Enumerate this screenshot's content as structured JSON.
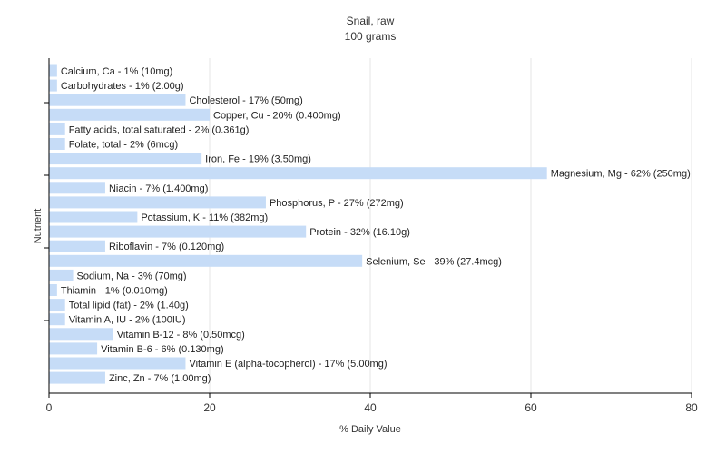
{
  "chart_data": {
    "type": "bar",
    "orientation": "horizontal",
    "title": "Snail, raw",
    "subtitle": "100 grams",
    "xlabel": "% Daily Value",
    "ylabel": "Nutrient",
    "xlim": [
      0,
      80
    ],
    "xticks": [
      0,
      20,
      40,
      60,
      80
    ],
    "grid": true,
    "bar_color": "#c6dcf7",
    "categories": [
      "Calcium, Ca - 1% (10mg)",
      "Carbohydrates - 1% (2.00g)",
      "Cholesterol - 17% (50mg)",
      "Copper, Cu - 20% (0.400mg)",
      "Fatty acids, total saturated - 2% (0.361g)",
      "Folate, total - 2% (6mcg)",
      "Iron, Fe - 19% (3.50mg)",
      "Magnesium, Mg - 62% (250mg)",
      "Niacin - 7% (1.400mg)",
      "Phosphorus, P - 27% (272mg)",
      "Potassium, K - 11% (382mg)",
      "Protein - 32% (16.10g)",
      "Riboflavin - 7% (0.120mg)",
      "Selenium, Se - 39% (27.4mcg)",
      "Sodium, Na - 3% (70mg)",
      "Thiamin - 1% (0.010mg)",
      "Total lipid (fat) - 2% (1.40g)",
      "Vitamin A, IU - 2% (100IU)",
      "Vitamin B-12 - 8% (0.50mcg)",
      "Vitamin B-6 - 6% (0.130mg)",
      "Vitamin E (alpha-tocopherol) - 17% (5.00mg)",
      "Zinc, Zn - 7% (1.00mg)"
    ],
    "values": [
      1,
      1,
      17,
      20,
      2,
      2,
      19,
      62,
      7,
      27,
      11,
      32,
      7,
      39,
      3,
      1,
      2,
      2,
      8,
      6,
      17,
      7
    ]
  }
}
